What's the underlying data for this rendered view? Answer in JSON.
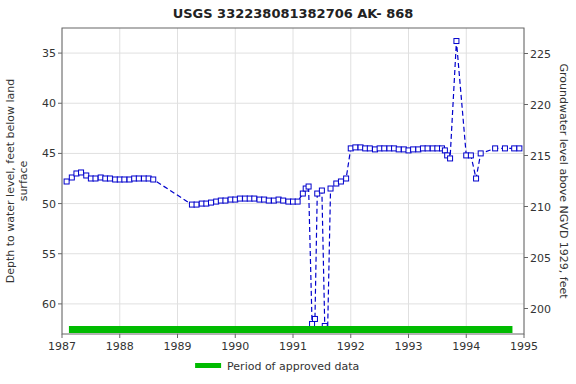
{
  "chart_data": {
    "type": "line",
    "title": "USGS 332238081382706 AK- 868",
    "y_label": "Depth to water level, feet below land\nsurface",
    "y2_label": "Groundwater level above NGVD 1929, feet",
    "xlim": [
      1987.0,
      1995.0
    ],
    "ylim": [
      63.0,
      32.5
    ],
    "y2lim": [
      197.5,
      227.5
    ],
    "xticks": [
      1987,
      1988,
      1989,
      1990,
      1991,
      1992,
      1993,
      1994,
      1995
    ],
    "yticks": [
      35,
      40,
      45,
      50,
      55,
      60
    ],
    "y2ticks": [
      200,
      205,
      210,
      215,
      220,
      225
    ],
    "grid": true,
    "legend": "bottom",
    "x": [
      1987.08,
      1987.17,
      1987.25,
      1987.33,
      1987.42,
      1987.5,
      1987.58,
      1987.67,
      1987.75,
      1987.83,
      1987.92,
      1988.0,
      1988.08,
      1988.17,
      1988.25,
      1988.33,
      1988.42,
      1988.5,
      1988.58,
      1989.25,
      1989.33,
      1989.42,
      1989.5,
      1989.58,
      1989.67,
      1989.75,
      1989.83,
      1989.92,
      1990.0,
      1990.08,
      1990.17,
      1990.25,
      1990.33,
      1990.42,
      1990.5,
      1990.58,
      1990.67,
      1990.75,
      1990.83,
      1990.92,
      1991.0,
      1991.08,
      1991.17,
      1991.22,
      1991.27,
      1991.33,
      1991.38,
      1991.42,
      1991.5,
      1991.55,
      1991.6,
      1991.65,
      1991.75,
      1991.83,
      1991.92,
      1992.0,
      1992.08,
      1992.17,
      1992.25,
      1992.33,
      1992.42,
      1992.5,
      1992.58,
      1992.67,
      1992.75,
      1992.83,
      1992.92,
      1993.0,
      1993.08,
      1993.17,
      1993.25,
      1993.33,
      1993.42,
      1993.5,
      1993.58,
      1993.63,
      1993.67,
      1993.72,
      1993.83,
      1994.0,
      1994.08,
      1994.17,
      1994.25,
      1994.5,
      1994.67,
      1994.83,
      1994.92
    ],
    "series": [
      {
        "type": "line",
        "color": "#0000cc",
        "line_style": "dashed",
        "marker": "square",
        "values": [
          47.8,
          47.4,
          47.0,
          46.9,
          47.2,
          47.5,
          47.5,
          47.4,
          47.5,
          47.5,
          47.6,
          47.6,
          47.6,
          47.6,
          47.5,
          47.5,
          47.5,
          47.5,
          47.6,
          50.1,
          50.1,
          50.0,
          50.0,
          49.9,
          49.8,
          49.7,
          49.7,
          49.6,
          49.6,
          49.5,
          49.5,
          49.5,
          49.5,
          49.6,
          49.6,
          49.7,
          49.7,
          49.6,
          49.7,
          49.8,
          49.8,
          49.8,
          49.0,
          48.5,
          48.3,
          62.0,
          61.5,
          49.0,
          48.7,
          62.2,
          62.5,
          48.5,
          48.0,
          47.8,
          47.5,
          44.5,
          44.4,
          44.4,
          44.5,
          44.5,
          44.6,
          44.5,
          44.5,
          44.5,
          44.5,
          44.6,
          44.6,
          44.7,
          44.6,
          44.6,
          44.5,
          44.5,
          44.5,
          44.5,
          44.5,
          44.7,
          45.2,
          45.5,
          33.8,
          45.2,
          45.2,
          47.5,
          45.0,
          44.5,
          44.5,
          44.5,
          44.5
        ]
      },
      {
        "type": "band",
        "name": "Period of approved data",
        "color": "#00bb00"
      }
    ]
  }
}
